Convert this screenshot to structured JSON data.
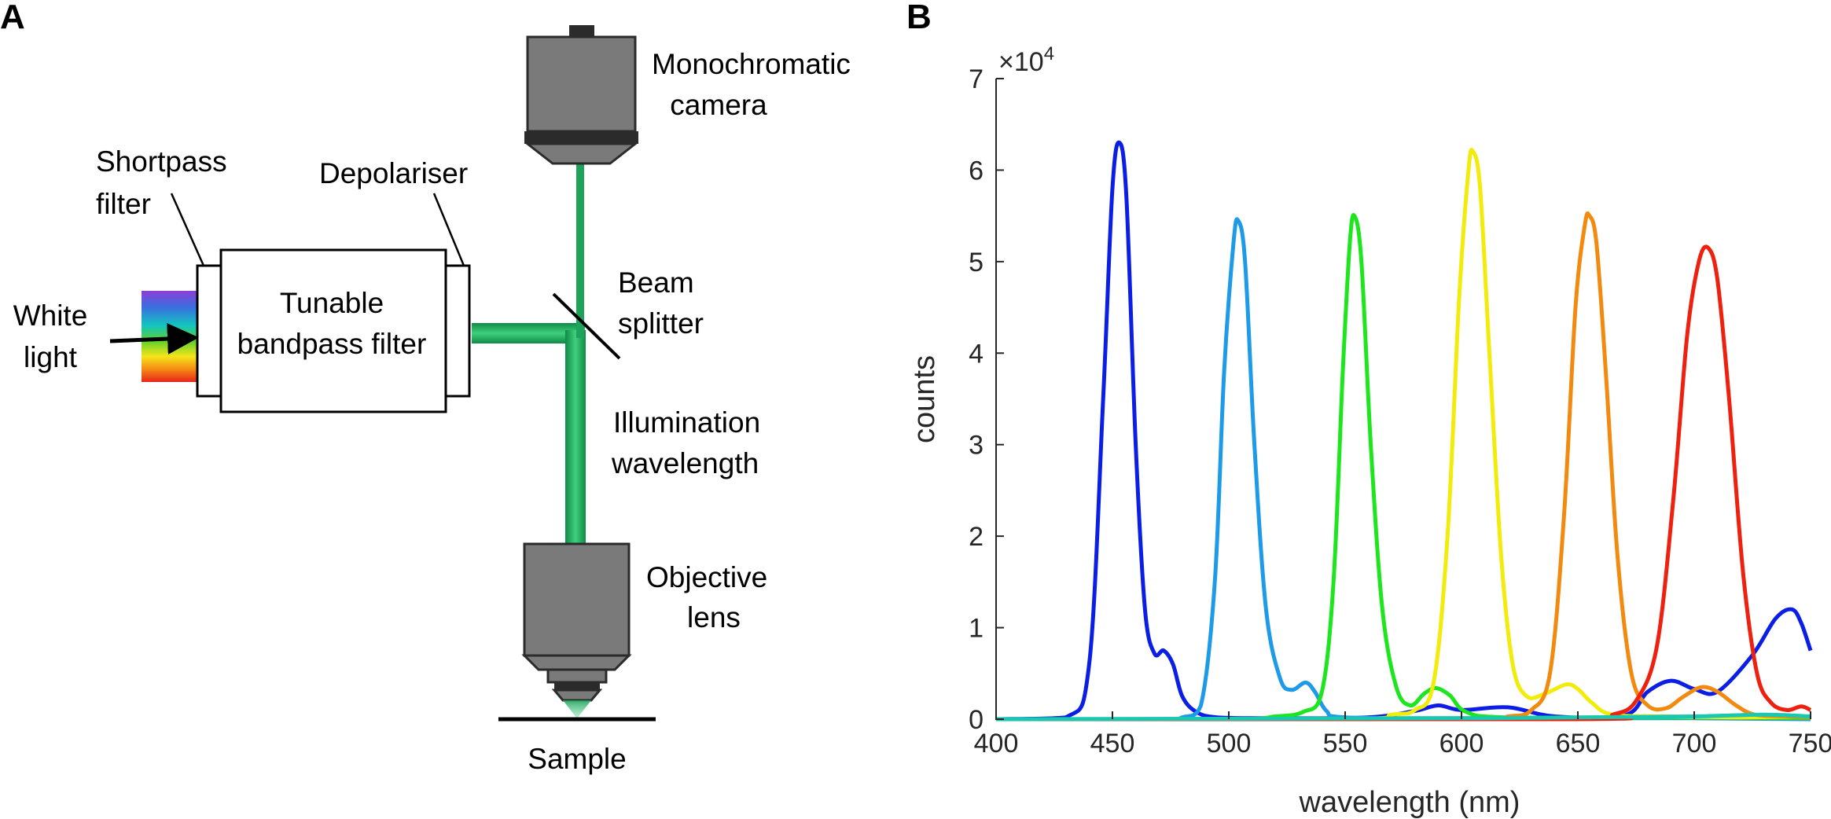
{
  "panel_a": {
    "letter": "A",
    "labels": {
      "shortpass_1": "Shortpass",
      "shortpass_2": "filter",
      "depolariser": "Depolariser",
      "white_1": "White",
      "white_2": "light",
      "tunable_1": "Tunable",
      "tunable_2": "bandpass filter",
      "mono_1": "Monochromatic",
      "mono_2": "camera",
      "beam_1": "Beam",
      "beam_2": "splitter",
      "illum_1": "Illumination",
      "illum_2": "wavelength",
      "obj_1": "Objective",
      "obj_2": "lens",
      "sample": "Sample"
    },
    "colors": {
      "beam": "#1fa35a",
      "housing": "#7a7a7a",
      "housing_dark": "#2b2b2b"
    }
  },
  "chart_data": {
    "panel_letter": "B",
    "type": "line",
    "xlabel": "wavelength (nm)",
    "ylabel": "counts",
    "y_multiplier": "×10^4",
    "y_multiplier_base": "×10",
    "y_multiplier_exp": "4",
    "xlim": [
      400,
      750
    ],
    "ylim": [
      0,
      70000
    ],
    "xticks": [
      400,
      450,
      500,
      550,
      600,
      650,
      700,
      750
    ],
    "yticks": [
      0,
      1,
      2,
      3,
      4,
      5,
      6,
      7
    ],
    "grid": false,
    "series": [
      {
        "color": "#0b1ee6",
        "peak_x": 453,
        "peak_y": 63000,
        "points": [
          [
            400,
            0
          ],
          [
            430,
            200
          ],
          [
            440,
            6000
          ],
          [
            446,
            35000
          ],
          [
            450,
            58000
          ],
          [
            453,
            63000
          ],
          [
            456,
            57000
          ],
          [
            460,
            30000
          ],
          [
            464,
            12000
          ],
          [
            468,
            7200
          ],
          [
            472,
            7500
          ],
          [
            476,
            6000
          ],
          [
            480,
            2500
          ],
          [
            486,
            800
          ],
          [
            495,
            200
          ],
          [
            520,
            100
          ],
          [
            560,
            200
          ],
          [
            580,
            900
          ],
          [
            590,
            1500
          ],
          [
            600,
            1000
          ],
          [
            620,
            1300
          ],
          [
            640,
            300
          ],
          [
            670,
            400
          ],
          [
            680,
            3000
          ],
          [
            690,
            4200
          ],
          [
            700,
            3300
          ],
          [
            710,
            3000
          ],
          [
            725,
            7000
          ],
          [
            735,
            11000
          ],
          [
            742,
            12000
          ],
          [
            746,
            10500
          ],
          [
            750,
            7500
          ]
        ]
      },
      {
        "color": "#1d9ae8",
        "peak_x": 504,
        "peak_y": 54500,
        "points": [
          [
            400,
            0
          ],
          [
            470,
            0
          ],
          [
            480,
            200
          ],
          [
            488,
            1500
          ],
          [
            494,
            15000
          ],
          [
            498,
            38000
          ],
          [
            502,
            52000
          ],
          [
            504,
            54500
          ],
          [
            507,
            50000
          ],
          [
            511,
            30000
          ],
          [
            516,
            12000
          ],
          [
            522,
            4500
          ],
          [
            527,
            3200
          ],
          [
            533,
            4000
          ],
          [
            537,
            3000
          ],
          [
            542,
            900
          ],
          [
            550,
            200
          ],
          [
            600,
            100
          ],
          [
            700,
            100
          ],
          [
            750,
            0
          ]
        ]
      },
      {
        "color": "#1ee61e",
        "peak_x": 554,
        "peak_y": 55000,
        "points": [
          [
            400,
            0
          ],
          [
            500,
            0
          ],
          [
            520,
            300
          ],
          [
            532,
            800
          ],
          [
            540,
            3000
          ],
          [
            545,
            15000
          ],
          [
            549,
            38000
          ],
          [
            552,
            52000
          ],
          [
            554,
            55000
          ],
          [
            557,
            50000
          ],
          [
            561,
            30000
          ],
          [
            566,
            12000
          ],
          [
            572,
            3500
          ],
          [
            578,
            1500
          ],
          [
            584,
            2800
          ],
          [
            589,
            3400
          ],
          [
            595,
            2600
          ],
          [
            602,
            800
          ],
          [
            620,
            200
          ],
          [
            700,
            200
          ],
          [
            750,
            100
          ]
        ]
      },
      {
        "color": "#f2ec0a",
        "peak_x": 605,
        "peak_y": 62000,
        "points": [
          [
            400,
            0
          ],
          [
            550,
            0
          ],
          [
            570,
            500
          ],
          [
            580,
            1000
          ],
          [
            588,
            4000
          ],
          [
            594,
            20000
          ],
          [
            599,
            46000
          ],
          [
            603,
            60000
          ],
          [
            605,
            62000
          ],
          [
            608,
            58000
          ],
          [
            612,
            40000
          ],
          [
            617,
            18000
          ],
          [
            622,
            6000
          ],
          [
            628,
            2500
          ],
          [
            636,
            2800
          ],
          [
            645,
            3800
          ],
          [
            650,
            3300
          ],
          [
            656,
            1800
          ],
          [
            665,
            500
          ],
          [
            690,
            300
          ],
          [
            720,
            200
          ],
          [
            750,
            300
          ]
        ]
      },
      {
        "color": "#f28a10",
        "peak_x": 655,
        "peak_y": 55000,
        "points": [
          [
            400,
            0
          ],
          [
            600,
            0
          ],
          [
            620,
            300
          ],
          [
            630,
            1000
          ],
          [
            638,
            5000
          ],
          [
            644,
            22000
          ],
          [
            649,
            45000
          ],
          [
            653,
            54000
          ],
          [
            655,
            55000
          ],
          [
            658,
            52000
          ],
          [
            662,
            38000
          ],
          [
            667,
            18000
          ],
          [
            673,
            5000
          ],
          [
            680,
            1500
          ],
          [
            688,
            1200
          ],
          [
            695,
            2400
          ],
          [
            703,
            3500
          ],
          [
            710,
            3000
          ],
          [
            718,
            1500
          ],
          [
            726,
            500
          ],
          [
            740,
            300
          ],
          [
            750,
            200
          ]
        ]
      },
      {
        "color": "#ee2010",
        "peak_x": 706,
        "peak_y": 51500,
        "points": [
          [
            400,
            0
          ],
          [
            650,
            0
          ],
          [
            665,
            500
          ],
          [
            675,
            2000
          ],
          [
            684,
            8000
          ],
          [
            691,
            24000
          ],
          [
            697,
            42000
          ],
          [
            702,
            50000
          ],
          [
            706,
            51500
          ],
          [
            710,
            48000
          ],
          [
            715,
            35000
          ],
          [
            721,
            16000
          ],
          [
            727,
            5000
          ],
          [
            733,
            1800
          ],
          [
            740,
            1000
          ],
          [
            746,
            1400
          ],
          [
            750,
            1000
          ]
        ]
      },
      {
        "color": "#18c8b0",
        "peak_x": 730,
        "peak_y": 500,
        "points": [
          [
            400,
            0
          ],
          [
            600,
            100
          ],
          [
            650,
            200
          ],
          [
            700,
            300
          ],
          [
            730,
            500
          ],
          [
            750,
            300
          ]
        ]
      }
    ]
  }
}
